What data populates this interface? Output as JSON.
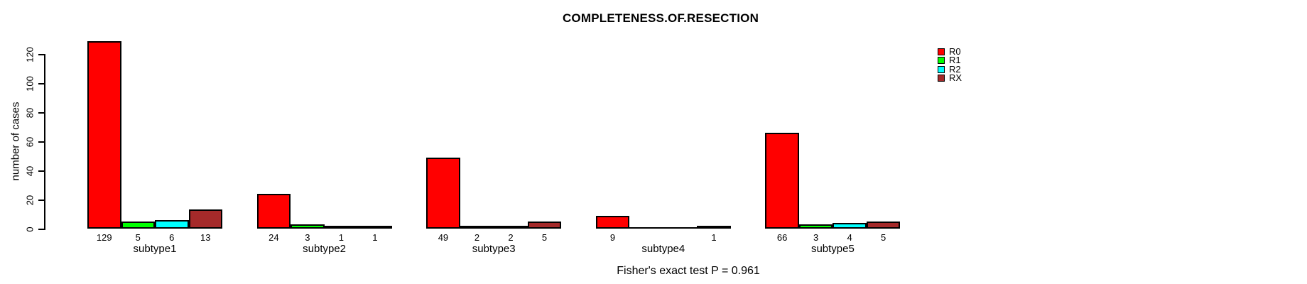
{
  "chart_data": {
    "type": "bar",
    "title": "COMPLETENESS.OF.RESECTION",
    "ylabel": "number of cases",
    "xlabel": "",
    "annotation": "Fisher's exact test P = 0.961",
    "categories": [
      "subtype1",
      "subtype2",
      "subtype3",
      "subtype4",
      "subtype5"
    ],
    "series": [
      {
        "name": "R0",
        "color": "#FF0000",
        "values": [
          129,
          24,
          49,
          9,
          66
        ]
      },
      {
        "name": "R1",
        "color": "#00FF00",
        "values": [
          5,
          3,
          2,
          0,
          3
        ]
      },
      {
        "name": "R2",
        "color": "#00FFFF",
        "values": [
          6,
          1,
          2,
          0,
          4
        ]
      },
      {
        "name": "RX",
        "color": "#A52A2A",
        "values": [
          13,
          1,
          5,
          1,
          5
        ]
      }
    ],
    "yticks": [
      0,
      20,
      40,
      60,
      80,
      100,
      120
    ],
    "ylim": [
      0,
      129
    ],
    "bar_value_labels_shown": true,
    "zero_values_unlabeled": true,
    "legend_position": "topright",
    "grid": false,
    "background_color": "#FFFFFF",
    "axis_color": "#000000"
  }
}
